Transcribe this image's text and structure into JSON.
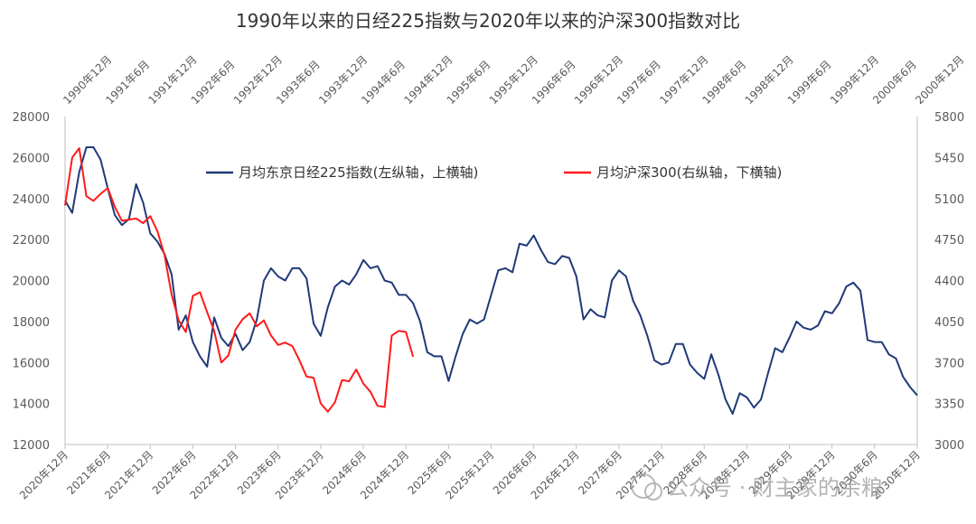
{
  "chart_data": {
    "type": "line",
    "title": "1990年以来的日经225指数与2020年以来的沪深300指数对比",
    "left_axis": {
      "ticks": [
        12000,
        14000,
        16000,
        18000,
        20000,
        22000,
        24000,
        26000,
        28000
      ],
      "ylim": [
        12000,
        28000
      ]
    },
    "right_axis": {
      "ticks": [
        3000,
        3350,
        3700,
        4050,
        4400,
        4750,
        5100,
        5450,
        5800
      ],
      "ylim": [
        3000,
        5800
      ]
    },
    "top_axis": {
      "labels": [
        "1990年12月",
        "1991年6月",
        "1991年12月",
        "1992年6月",
        "1992年12月",
        "1993年6月",
        "1993年12月",
        "1994年6月",
        "1994年12月",
        "1995年6月",
        "1995年12月",
        "1996年6月",
        "1996年12月",
        "1997年6月",
        "1997年12月",
        "1998年6月",
        "1998年12月",
        "1999年6月",
        "1999年12月",
        "2000年6月",
        "2000年12月"
      ]
    },
    "bottom_axis": {
      "labels": [
        "2020年12月",
        "2021年6月",
        "2021年12月",
        "2022年6月",
        "2022年12月",
        "2023年6月",
        "2023年12月",
        "2024年6月",
        "2024年12月",
        "2025年6月",
        "2025年12月",
        "2026年6月",
        "2026年12月",
        "2027年6月",
        "2027年12月",
        "2028年6月",
        "2028年12月",
        "2029年6月",
        "2029年12月",
        "2030年6月",
        "2030年12月"
      ]
    },
    "legend_position": "top-center",
    "grid": false,
    "series": [
      {
        "name": "月均东京日经225指数(左纵轴，上横轴)",
        "axis": "left",
        "color": "#1f3a78",
        "start": "1990年12月",
        "values": [
          23900,
          23300,
          25300,
          26500,
          26500,
          25900,
          24500,
          23200,
          22700,
          23000,
          24700,
          23800,
          22300,
          21900,
          21300,
          20300,
          17600,
          18300,
          17000,
          16300,
          15800,
          18200,
          17200,
          16800,
          17400,
          16600,
          17000,
          18100,
          20000,
          20600,
          20200,
          20000,
          20600,
          20600,
          20100,
          17900,
          17300,
          18700,
          19700,
          20000,
          19800,
          20300,
          21000,
          20600,
          20700,
          20000,
          19900,
          19300,
          19300,
          18900,
          18000,
          16500,
          16300,
          16300,
          15100,
          16300,
          17400,
          18100,
          17900,
          18100,
          19300,
          20500,
          20600,
          20400,
          21800,
          21700,
          22200,
          21500,
          20900,
          20800,
          21200,
          21100,
          20200,
          18100,
          18600,
          18300,
          18200,
          20000,
          20500,
          20200,
          19000,
          18300,
          17300,
          16100,
          15900,
          16000,
          16900,
          16900,
          15900,
          15500,
          15200,
          16400,
          15400,
          14200,
          13500,
          14500,
          14300,
          13800,
          14200,
          15500,
          16700,
          16500,
          17200,
          18000,
          17700,
          17600,
          17800,
          18500,
          18400,
          18900,
          19700,
          19900,
          19500,
          17100,
          17000,
          17000,
          16400,
          16200,
          15300,
          14800,
          14400
        ]
      },
      {
        "name": "月均沪深300(右纵轴，下横轴)",
        "axis": "right",
        "color": "#ff1a1a",
        "start": "2020年12月",
        "values": [
          5040,
          5450,
          5530,
          5120,
          5080,
          5140,
          5190,
          5030,
          4910,
          4920,
          4930,
          4890,
          4950,
          4820,
          4620,
          4280,
          4060,
          3960,
          4270,
          4300,
          4130,
          3970,
          3700,
          3760,
          3980,
          4070,
          4120,
          4010,
          4060,
          3930,
          3850,
          3870,
          3840,
          3720,
          3580,
          3570,
          3350,
          3280,
          3360,
          3550,
          3540,
          3640,
          3520,
          3450,
          3330,
          3320,
          3930,
          3970,
          3960,
          3750
        ]
      }
    ]
  },
  "watermark": "公众号 · 财主家的余粮"
}
